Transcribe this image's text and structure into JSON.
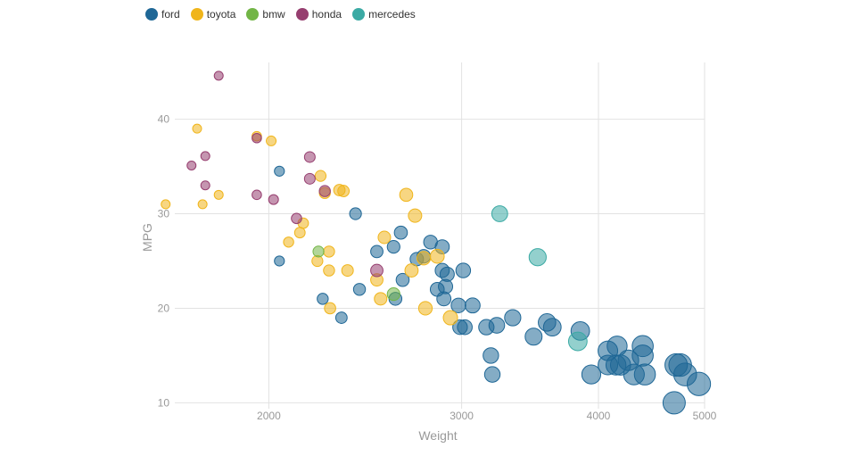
{
  "legend": {
    "items": [
      {
        "name": "ford",
        "color": "#1f6796"
      },
      {
        "name": "toyota",
        "color": "#f0b51b"
      },
      {
        "name": "bmw",
        "color": "#72b546"
      },
      {
        "name": "honda",
        "color": "#963e6f"
      },
      {
        "name": "mercedes",
        "color": "#3baaa4"
      }
    ]
  },
  "chart_data": {
    "type": "scatter",
    "xlabel": "Weight",
    "ylabel": "MPG",
    "x_scale": "log",
    "xlim": [
      1500,
      5000
    ],
    "ylim": [
      9,
      46
    ],
    "x_ticks": [
      2000,
      3000,
      4000,
      5000
    ],
    "x_tick_labels": [
      "2000",
      "3000",
      "4000",
      "5000"
    ],
    "y_ticks": [
      10,
      20,
      30,
      40
    ],
    "y_tick_labels": [
      "10",
      "20",
      "30",
      "40"
    ],
    "grid": true,
    "legend_position": "top-left",
    "size_encodes": "Weight",
    "series": [
      {
        "name": "ford",
        "color": "#1f6796",
        "points": [
          [
            2045,
            34.5
          ],
          [
            2045,
            25
          ],
          [
            2240,
            21
          ],
          [
            2330,
            19
          ],
          [
            2400,
            30
          ],
          [
            2420,
            22
          ],
          [
            2510,
            26
          ],
          [
            2600,
            26.5
          ],
          [
            2610,
            21
          ],
          [
            2640,
            28
          ],
          [
            2650,
            23
          ],
          [
            2730,
            25.2
          ],
          [
            2770,
            25.5
          ],
          [
            2810,
            27
          ],
          [
            2850,
            22
          ],
          [
            2880,
            26.5
          ],
          [
            2880,
            24
          ],
          [
            2890,
            21
          ],
          [
            2900,
            22.3
          ],
          [
            2910,
            23.6
          ],
          [
            3010,
            24
          ],
          [
            2980,
            20.3
          ],
          [
            2990,
            18
          ],
          [
            3020,
            18
          ],
          [
            3070,
            20.3
          ],
          [
            3160,
            18
          ],
          [
            3190,
            15
          ],
          [
            3200,
            13
          ],
          [
            3230,
            18.2
          ],
          [
            3340,
            19
          ],
          [
            3490,
            17
          ],
          [
            3590,
            18.5
          ],
          [
            3630,
            18
          ],
          [
            3850,
            17.6
          ],
          [
            3940,
            13
          ],
          [
            4080,
            15.5
          ],
          [
            4080,
            14
          ],
          [
            4160,
            16
          ],
          [
            4150,
            14
          ],
          [
            4190,
            14
          ],
          [
            4260,
            14.5
          ],
          [
            4310,
            13
          ],
          [
            4390,
            16
          ],
          [
            4390,
            15
          ],
          [
            4410,
            13
          ],
          [
            4710,
            14
          ],
          [
            4750,
            14
          ],
          [
            4800,
            13
          ],
          [
            4690,
            10
          ],
          [
            4940,
            12
          ]
        ]
      },
      {
        "name": "toyota",
        "color": "#f0b51b",
        "points": [
          [
            1610,
            31
          ],
          [
            1720,
            39
          ],
          [
            1740,
            31
          ],
          [
            1800,
            32
          ],
          [
            1950,
            38.2
          ],
          [
            2010,
            37.7
          ],
          [
            2085,
            27
          ],
          [
            2135,
            28
          ],
          [
            2150,
            29
          ],
          [
            2215,
            25
          ],
          [
            2230,
            34
          ],
          [
            2250,
            32.2
          ],
          [
            2270,
            26
          ],
          [
            2270,
            24
          ],
          [
            2275,
            20
          ],
          [
            2320,
            32.5
          ],
          [
            2340,
            32.4
          ],
          [
            2360,
            24
          ],
          [
            2510,
            23
          ],
          [
            2530,
            21
          ],
          [
            2550,
            27.5
          ],
          [
            2670,
            32
          ],
          [
            2700,
            24
          ],
          [
            2720,
            29.8
          ],
          [
            2770,
            25.3
          ],
          [
            2780,
            20
          ],
          [
            2850,
            25.5
          ],
          [
            2930,
            19
          ]
        ]
      },
      {
        "name": "bmw",
        "color": "#72b546",
        "points": [
          [
            2220,
            26
          ],
          [
            2600,
            21.5
          ]
        ]
      },
      {
        "name": "honda",
        "color": "#963e6f",
        "points": [
          [
            1800,
            44.6
          ],
          [
            1700,
            35.1
          ],
          [
            1750,
            36.1
          ],
          [
            1750,
            33
          ],
          [
            1950,
            38
          ],
          [
            1950,
            32
          ],
          [
            2020,
            31.5
          ],
          [
            2120,
            29.5
          ],
          [
            2180,
            36
          ],
          [
            2180,
            33.7
          ],
          [
            2250,
            32.4
          ],
          [
            2510,
            24
          ]
        ]
      },
      {
        "name": "mercedes",
        "color": "#3baaa4",
        "points": [
          [
            3250,
            30
          ],
          [
            3520,
            25.4
          ],
          [
            3830,
            16.5
          ]
        ]
      }
    ]
  }
}
